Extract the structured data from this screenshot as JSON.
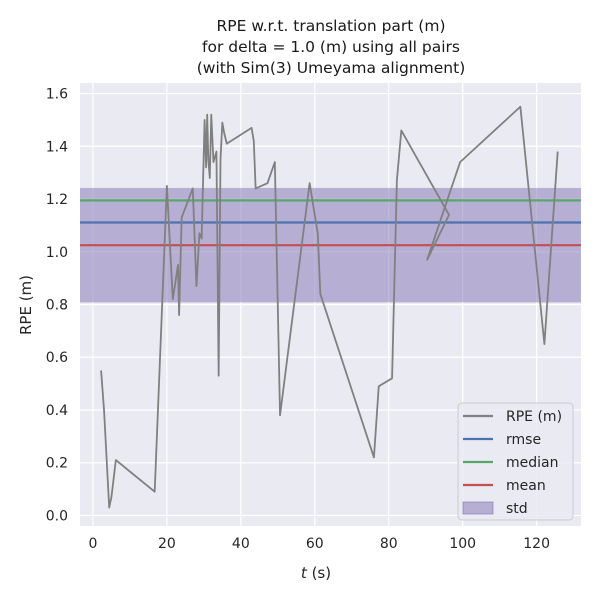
{
  "chart_data": {
    "type": "line",
    "title_lines": [
      "RPE w.r.t. translation part (m)",
      "for delta = 1.0 (m) using all pairs",
      "(with Sim(3) Umeyama alignment)"
    ],
    "xlabel_italic": "t",
    "xlabel_rest": " (s)",
    "ylabel": "RPE (m)",
    "xlim": [
      -3.5,
      132
    ],
    "ylim": [
      -0.04,
      1.64
    ],
    "xticks": [
      0,
      20,
      40,
      60,
      80,
      100,
      120
    ],
    "yticks": [
      0.0,
      0.2,
      0.4,
      0.6,
      0.8,
      1.0,
      1.2,
      1.4,
      1.6
    ],
    "ytick_labels": [
      "0.0",
      "0.2",
      "0.4",
      "0.6",
      "0.8",
      "1.0",
      "1.2",
      "1.4",
      "1.6"
    ],
    "grid": true,
    "legend_position": "lower-right",
    "series": [
      {
        "name": "RPE (m)",
        "color": "#808080",
        "x": [
          2.2,
          3.0,
          4.4,
          5.0,
          6.2,
          16.7,
          20.0,
          21.6,
          23.0,
          23.3,
          24.0,
          27.0,
          28.0,
          28.8,
          29.4,
          30.2,
          30.6,
          30.9,
          31.2,
          31.6,
          32.0,
          32.6,
          33.4,
          34.0,
          34.5,
          35.0,
          35.5,
          36.2,
          42.9,
          43.5,
          44.0,
          47.2,
          49.2,
          50.6,
          58.6,
          60.8,
          61.5,
          76.0,
          77.3,
          80.9,
          82.2,
          83.4,
          96.3,
          90.4,
          99.3,
          115.6,
          122.1,
          125.7
        ],
        "values": [
          0.55,
          0.4,
          0.03,
          0.07,
          0.21,
          0.09,
          1.25,
          0.82,
          0.95,
          0.76,
          1.13,
          1.24,
          0.87,
          1.07,
          1.05,
          1.5,
          1.32,
          1.52,
          1.35,
          1.28,
          1.52,
          1.34,
          1.38,
          0.53,
          1.35,
          1.49,
          1.45,
          1.41,
          1.47,
          1.42,
          1.24,
          1.26,
          1.34,
          0.38,
          1.26,
          1.07,
          0.84,
          0.22,
          0.49,
          0.52,
          1.27,
          1.46,
          1.14,
          0.97,
          1.34,
          1.55,
          0.65,
          1.38
        ]
      }
    ],
    "stats": [
      {
        "name": "rmse",
        "value": 1.111,
        "color": "#4c72b0"
      },
      {
        "name": "median",
        "value": 1.195,
        "color": "#55a868"
      },
      {
        "name": "mean",
        "value": 1.025,
        "color": "#c44e52"
      }
    ],
    "std_band": {
      "name": "std",
      "lower": 0.808,
      "upper": 1.242,
      "color": "#8172b3"
    },
    "legend_entries": [
      "RPE (m)",
      "rmse",
      "median",
      "mean",
      "std"
    ]
  }
}
